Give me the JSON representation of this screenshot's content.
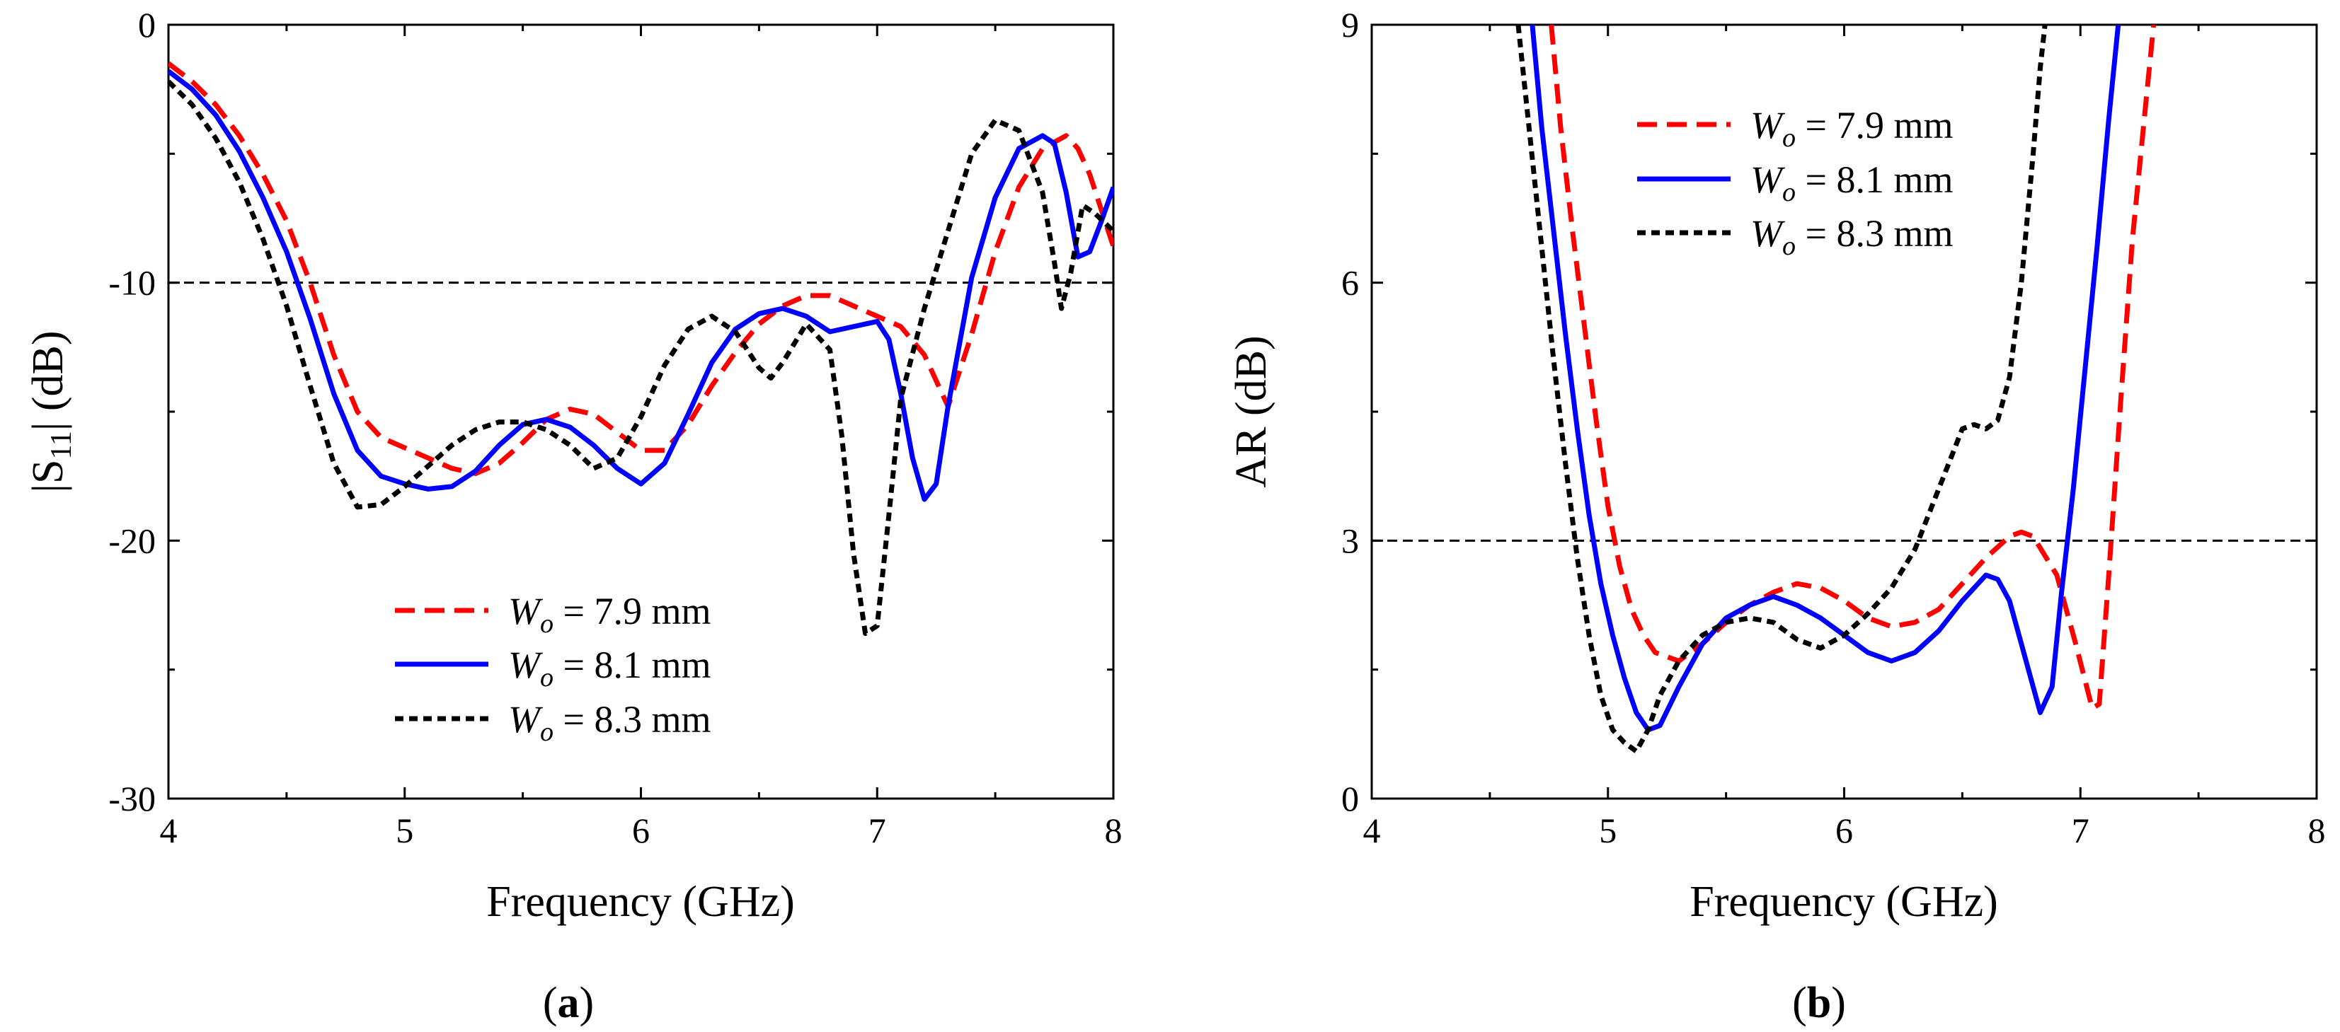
{
  "chart_data": [
    {
      "type": "line",
      "panel_label": "a",
      "title": "",
      "xlabel": "Frequency (GHz)",
      "ylabel": "|S11| (dB)",
      "xlim": [
        4,
        8
      ],
      "ylim": [
        -30,
        0
      ],
      "xticks": [
        4,
        5,
        6,
        7,
        8
      ],
      "xtick_labels": [
        "4",
        "5",
        "6",
        "7",
        "8"
      ],
      "yticks": [
        0,
        -10,
        -20,
        -30
      ],
      "ytick_labels": [
        "0",
        "-10",
        "-20",
        "-30"
      ],
      "reference_line": -10,
      "grid": false,
      "legend_position": "bottom-center",
      "series": [
        {
          "name": "Wo = 7.9 mm",
          "color": "#ff0000",
          "dash": "dashed",
          "points": [
            [
              4.0,
              -1.5
            ],
            [
              4.1,
              -2.2
            ],
            [
              4.2,
              -3.1
            ],
            [
              4.3,
              -4.3
            ],
            [
              4.4,
              -5.8
            ],
            [
              4.5,
              -7.6
            ],
            [
              4.6,
              -10.0
            ],
            [
              4.7,
              -12.8
            ],
            [
              4.8,
              -15.0
            ],
            [
              4.9,
              -16.0
            ],
            [
              5.0,
              -16.4
            ],
            [
              5.1,
              -16.8
            ],
            [
              5.2,
              -17.2
            ],
            [
              5.3,
              -17.4
            ],
            [
              5.4,
              -17.0
            ],
            [
              5.5,
              -16.2
            ],
            [
              5.6,
              -15.3
            ],
            [
              5.7,
              -14.9
            ],
            [
              5.8,
              -15.1
            ],
            [
              5.9,
              -15.8
            ],
            [
              6.0,
              -16.5
            ],
            [
              6.1,
              -16.5
            ],
            [
              6.2,
              -15.5
            ],
            [
              6.3,
              -14.0
            ],
            [
              6.4,
              -12.7
            ],
            [
              6.5,
              -11.6
            ],
            [
              6.6,
              -10.9
            ],
            [
              6.7,
              -10.5
            ],
            [
              6.8,
              -10.5
            ],
            [
              6.9,
              -10.9
            ],
            [
              7.0,
              -11.3
            ],
            [
              7.1,
              -11.7
            ],
            [
              7.2,
              -12.8
            ],
            [
              7.3,
              -14.8
            ],
            [
              7.4,
              -12.0
            ],
            [
              7.5,
              -8.8
            ],
            [
              7.6,
              -6.3
            ],
            [
              7.7,
              -4.8
            ],
            [
              7.8,
              -4.3
            ],
            [
              7.85,
              -4.8
            ],
            [
              7.9,
              -5.8
            ],
            [
              7.95,
              -7.2
            ],
            [
              8.0,
              -8.6
            ]
          ]
        },
        {
          "name": "Wo = 8.1 mm",
          "color": "#0000ff",
          "dash": "solid",
          "points": [
            [
              4.0,
              -1.8
            ],
            [
              4.1,
              -2.5
            ],
            [
              4.2,
              -3.5
            ],
            [
              4.3,
              -4.9
            ],
            [
              4.4,
              -6.7
            ],
            [
              4.5,
              -8.8
            ],
            [
              4.6,
              -11.4
            ],
            [
              4.7,
              -14.3
            ],
            [
              4.8,
              -16.5
            ],
            [
              4.9,
              -17.5
            ],
            [
              5.0,
              -17.8
            ],
            [
              5.1,
              -18.0
            ],
            [
              5.2,
              -17.9
            ],
            [
              5.3,
              -17.3
            ],
            [
              5.4,
              -16.3
            ],
            [
              5.5,
              -15.5
            ],
            [
              5.6,
              -15.3
            ],
            [
              5.7,
              -15.6
            ],
            [
              5.8,
              -16.3
            ],
            [
              5.9,
              -17.2
            ],
            [
              6.0,
              -17.8
            ],
            [
              6.1,
              -17.0
            ],
            [
              6.2,
              -15.1
            ],
            [
              6.3,
              -13.1
            ],
            [
              6.4,
              -11.8
            ],
            [
              6.5,
              -11.2
            ],
            [
              6.6,
              -11.0
            ],
            [
              6.7,
              -11.3
            ],
            [
              6.8,
              -11.9
            ],
            [
              6.9,
              -11.7
            ],
            [
              7.0,
              -11.5
            ],
            [
              7.05,
              -12.2
            ],
            [
              7.1,
              -14.3
            ],
            [
              7.15,
              -16.8
            ],
            [
              7.2,
              -18.4
            ],
            [
              7.25,
              -17.8
            ],
            [
              7.3,
              -14.8
            ],
            [
              7.4,
              -9.8
            ],
            [
              7.5,
              -6.7
            ],
            [
              7.6,
              -4.8
            ],
            [
              7.7,
              -4.3
            ],
            [
              7.75,
              -4.6
            ],
            [
              7.8,
              -6.5
            ],
            [
              7.85,
              -9.0
            ],
            [
              7.9,
              -8.8
            ],
            [
              7.95,
              -7.6
            ],
            [
              8.0,
              -6.3
            ]
          ]
        },
        {
          "name": "Wo = 8.3 mm",
          "color": "#000000",
          "dash": "dotted",
          "points": [
            [
              4.0,
              -2.2
            ],
            [
              4.1,
              -3.1
            ],
            [
              4.2,
              -4.4
            ],
            [
              4.3,
              -6.1
            ],
            [
              4.4,
              -8.3
            ],
            [
              4.5,
              -10.9
            ],
            [
              4.6,
              -14.0
            ],
            [
              4.7,
              -17.0
            ],
            [
              4.8,
              -18.7
            ],
            [
              4.9,
              -18.6
            ],
            [
              5.0,
              -17.9
            ],
            [
              5.1,
              -17.1
            ],
            [
              5.2,
              -16.3
            ],
            [
              5.3,
              -15.7
            ],
            [
              5.4,
              -15.4
            ],
            [
              5.5,
              -15.4
            ],
            [
              5.6,
              -15.7
            ],
            [
              5.7,
              -16.3
            ],
            [
              5.8,
              -17.2
            ],
            [
              5.9,
              -16.8
            ],
            [
              6.0,
              -15.2
            ],
            [
              6.1,
              -13.2
            ],
            [
              6.2,
              -11.8
            ],
            [
              6.3,
              -11.3
            ],
            [
              6.4,
              -11.9
            ],
            [
              6.5,
              -13.3
            ],
            [
              6.55,
              -13.7
            ],
            [
              6.6,
              -13.1
            ],
            [
              6.7,
              -11.6
            ],
            [
              6.8,
              -12.6
            ],
            [
              6.85,
              -15.9
            ],
            [
              6.9,
              -20.5
            ],
            [
              6.95,
              -23.6
            ],
            [
              7.0,
              -23.3
            ],
            [
              7.05,
              -19.0
            ],
            [
              7.1,
              -14.5
            ],
            [
              7.2,
              -11.0
            ],
            [
              7.3,
              -8.0
            ],
            [
              7.4,
              -5.0
            ],
            [
              7.5,
              -3.7
            ],
            [
              7.6,
              -4.1
            ],
            [
              7.7,
              -6.5
            ],
            [
              7.75,
              -9.2
            ],
            [
              7.78,
              -11.0
            ],
            [
              7.82,
              -9.6
            ],
            [
              7.87,
              -7.0
            ],
            [
              7.92,
              -7.3
            ],
            [
              8.0,
              -8.0
            ]
          ]
        }
      ]
    },
    {
      "type": "line",
      "panel_label": "b",
      "title": "",
      "xlabel": "Frequency (GHz)",
      "ylabel": "AR (dB)",
      "xlim": [
        4,
        8
      ],
      "ylim": [
        0,
        9
      ],
      "xticks": [
        4,
        5,
        6,
        7,
        8
      ],
      "xtick_labels": [
        "4",
        "5",
        "6",
        "7",
        "8"
      ],
      "yticks": [
        0,
        3,
        6,
        9
      ],
      "ytick_labels": [
        "0",
        "3",
        "6",
        "9"
      ],
      "reference_line": 3,
      "grid": false,
      "legend_position": "top-left",
      "series": [
        {
          "name": "Wo = 7.9 mm",
          "color": "#ff0000",
          "dash": "dashed",
          "points": [
            [
              4.76,
              9.0
            ],
            [
              4.8,
              7.8
            ],
            [
              4.85,
              6.6
            ],
            [
              4.9,
              5.5
            ],
            [
              4.95,
              4.4
            ],
            [
              5.0,
              3.4
            ],
            [
              5.05,
              2.7
            ],
            [
              5.1,
              2.2
            ],
            [
              5.15,
              1.9
            ],
            [
              5.2,
              1.7
            ],
            [
              5.3,
              1.6
            ],
            [
              5.4,
              1.8
            ],
            [
              5.5,
              2.05
            ],
            [
              5.6,
              2.25
            ],
            [
              5.7,
              2.4
            ],
            [
              5.8,
              2.5
            ],
            [
              5.9,
              2.45
            ],
            [
              6.0,
              2.3
            ],
            [
              6.1,
              2.1
            ],
            [
              6.2,
              2.0
            ],
            [
              6.3,
              2.05
            ],
            [
              6.4,
              2.2
            ],
            [
              6.5,
              2.5
            ],
            [
              6.6,
              2.8
            ],
            [
              6.7,
              3.05
            ],
            [
              6.75,
              3.1
            ],
            [
              6.8,
              3.05
            ],
            [
              6.9,
              2.6
            ],
            [
              6.98,
              1.8
            ],
            [
              7.05,
              1.05
            ],
            [
              7.08,
              1.1
            ],
            [
              7.12,
              2.6
            ],
            [
              7.17,
              4.6
            ],
            [
              7.22,
              6.5
            ],
            [
              7.27,
              7.9
            ],
            [
              7.31,
              9.0
            ]
          ]
        },
        {
          "name": "Wo = 8.1 mm",
          "color": "#0000ff",
          "dash": "solid",
          "points": [
            [
              4.68,
              9.0
            ],
            [
              4.72,
              7.8
            ],
            [
              4.77,
              6.6
            ],
            [
              4.82,
              5.4
            ],
            [
              4.87,
              4.3
            ],
            [
              4.92,
              3.3
            ],
            [
              4.97,
              2.5
            ],
            [
              5.02,
              1.9
            ],
            [
              5.07,
              1.4
            ],
            [
              5.12,
              1.0
            ],
            [
              5.17,
              0.8
            ],
            [
              5.22,
              0.85
            ],
            [
              5.3,
              1.3
            ],
            [
              5.4,
              1.8
            ],
            [
              5.5,
              2.1
            ],
            [
              5.6,
              2.25
            ],
            [
              5.7,
              2.35
            ],
            [
              5.8,
              2.25
            ],
            [
              5.9,
              2.1
            ],
            [
              6.0,
              1.9
            ],
            [
              6.1,
              1.7
            ],
            [
              6.2,
              1.6
            ],
            [
              6.3,
              1.7
            ],
            [
              6.4,
              1.95
            ],
            [
              6.5,
              2.3
            ],
            [
              6.6,
              2.6
            ],
            [
              6.65,
              2.55
            ],
            [
              6.7,
              2.3
            ],
            [
              6.75,
              1.8
            ],
            [
              6.8,
              1.3
            ],
            [
              6.83,
              1.0
            ],
            [
              6.88,
              1.3
            ],
            [
              6.92,
              2.4
            ],
            [
              6.97,
              3.6
            ],
            [
              7.02,
              5.0
            ],
            [
              7.07,
              6.4
            ],
            [
              7.12,
              7.9
            ],
            [
              7.16,
              9.0
            ]
          ]
        },
        {
          "name": "Wo = 8.3 mm",
          "color": "#000000",
          "dash": "dotted",
          "points": [
            [
              4.62,
              9.0
            ],
            [
              4.67,
              7.7
            ],
            [
              4.72,
              6.4
            ],
            [
              4.77,
              5.1
            ],
            [
              4.82,
              3.9
            ],
            [
              4.87,
              2.8
            ],
            [
              4.92,
              1.9
            ],
            [
              4.97,
              1.2
            ],
            [
              5.02,
              0.8
            ],
            [
              5.07,
              0.65
            ],
            [
              5.12,
              0.55
            ],
            [
              5.17,
              0.8
            ],
            [
              5.22,
              1.2
            ],
            [
              5.3,
              1.6
            ],
            [
              5.4,
              1.9
            ],
            [
              5.5,
              2.05
            ],
            [
              5.6,
              2.1
            ],
            [
              5.7,
              2.05
            ],
            [
              5.8,
              1.85
            ],
            [
              5.9,
              1.75
            ],
            [
              6.0,
              1.9
            ],
            [
              6.1,
              2.15
            ],
            [
              6.2,
              2.45
            ],
            [
              6.3,
              2.9
            ],
            [
              6.4,
              3.6
            ],
            [
              6.5,
              4.3
            ],
            [
              6.55,
              4.35
            ],
            [
              6.6,
              4.3
            ],
            [
              6.65,
              4.4
            ],
            [
              6.7,
              4.9
            ],
            [
              6.75,
              6.0
            ],
            [
              6.8,
              7.5
            ],
            [
              6.83,
              8.5
            ],
            [
              6.85,
              9.0
            ]
          ]
        }
      ]
    }
  ],
  "legend": {
    "subscript": "o",
    "equals": " = ",
    "entries": [
      {
        "symbol": "W",
        "value": "7.9 mm"
      },
      {
        "symbol": "W",
        "value": "8.1 mm"
      },
      {
        "symbol": "W",
        "value": "8.3 mm"
      }
    ]
  },
  "panel_labels": {
    "a": "(a)",
    "b": "(b)"
  },
  "ylabel_a": {
    "prefix": "|S",
    "sub": "11",
    "suffix": "| (dB)"
  }
}
